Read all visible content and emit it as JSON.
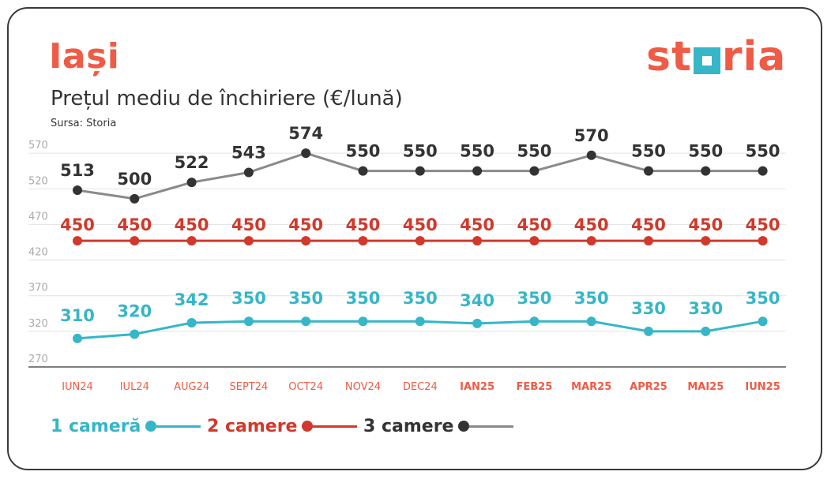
{
  "header": {
    "city": "Iași",
    "subtitle": "Prețul mediu de închiriere (€/lună)",
    "source": "Sursa: Storia",
    "logo_pre": "st",
    "logo_post": "ria"
  },
  "colors": {
    "accent": "#ef5b45",
    "teal": "#36b6c7",
    "red": "#d0392b",
    "dark": "#333333",
    "gray_line": "#8a8a8a"
  },
  "chart_data": {
    "type": "line",
    "title": "Prețul mediu de închiriere (€/lună)",
    "categories": [
      "IUN24",
      "IUL24",
      "AUG24",
      "SEPT24",
      "OCT24",
      "NOV24",
      "DEC24",
      "IAN25",
      "FEB25",
      "MAR25",
      "APR25",
      "MAI25",
      "IUN25"
    ],
    "yticks": [
      570,
      520,
      470,
      420,
      370,
      320,
      270
    ],
    "ylim": [
      270,
      590
    ],
    "grid": true,
    "legend_position": "bottom-left",
    "series": [
      {
        "name": "1 cameră",
        "values": [
          310,
          320,
          342,
          350,
          350,
          350,
          350,
          340,
          350,
          350,
          330,
          330,
          350
        ],
        "marker_values": [
          310,
          316,
          332,
          334,
          334,
          334,
          334,
          331,
          334,
          334,
          320,
          320,
          334
        ]
      },
      {
        "name": "2 camere",
        "values": [
          450,
          450,
          450,
          450,
          450,
          450,
          450,
          450,
          450,
          450,
          450,
          450,
          450
        ],
        "marker_values": [
          447,
          447,
          447,
          447,
          447,
          447,
          447,
          447,
          447,
          447,
          447,
          447,
          447
        ]
      },
      {
        "name": "3 camere",
        "values": [
          513,
          500,
          522,
          543,
          574,
          550,
          550,
          550,
          550,
          570,
          550,
          550,
          550
        ],
        "marker_values": [
          518,
          506,
          529,
          543,
          570,
          545,
          545,
          545,
          545,
          567,
          545,
          545,
          545
        ]
      }
    ]
  },
  "legend": [
    {
      "label": "1 cameră"
    },
    {
      "label": "2 camere"
    },
    {
      "label": "3 camere"
    }
  ]
}
